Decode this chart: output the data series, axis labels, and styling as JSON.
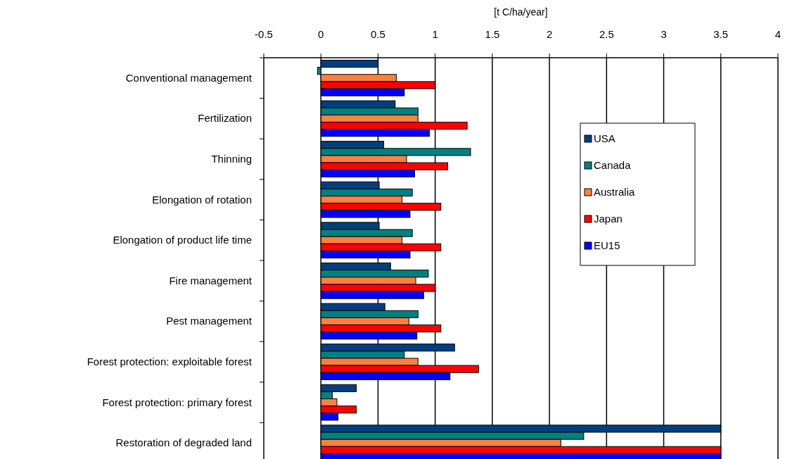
{
  "chart_data": {
    "type": "bar",
    "orientation": "horizontal",
    "xlabel": "[t C/ha/year]",
    "categories": [
      "Conventional management",
      "Fertilization",
      "Thinning",
      "Elongation of rotation",
      "Elongation of product life time",
      "Fire management",
      "Pest management",
      "Forest protection: exploitable forest",
      "Forest protection: primary forest",
      "Restoration of degraded land"
    ],
    "series": [
      {
        "name": "USA",
        "color": "#003f7f",
        "values": [
          0.5,
          0.65,
          0.55,
          0.51,
          0.51,
          0.61,
          0.56,
          1.17,
          0.31,
          3.5
        ]
      },
      {
        "name": "Canada",
        "color": "#008080",
        "values": [
          -0.03,
          0.85,
          1.31,
          0.8,
          0.8,
          0.94,
          0.85,
          0.73,
          0.1,
          2.3
        ]
      },
      {
        "name": "Australia",
        "color": "#ff8040",
        "values": [
          0.66,
          0.85,
          0.75,
          0.71,
          0.71,
          0.83,
          0.77,
          0.85,
          0.14,
          2.1
        ]
      },
      {
        "name": "Japan",
        "color": "#ff0000",
        "values": [
          1.0,
          1.28,
          1.11,
          1.05,
          1.05,
          1.0,
          1.05,
          1.38,
          0.31,
          3.5
        ]
      },
      {
        "name": "EU15",
        "color": "#0000ff",
        "values": [
          0.73,
          0.95,
          0.82,
          0.78,
          0.78,
          0.9,
          0.84,
          1.13,
          0.15,
          3.5
        ]
      }
    ],
    "xlim": [
      -0.5,
      4
    ],
    "xticks": [
      -0.5,
      0,
      0.5,
      1,
      1.5,
      2,
      2.5,
      3,
      3.5,
      4
    ],
    "grid": "x",
    "legend": "right"
  }
}
